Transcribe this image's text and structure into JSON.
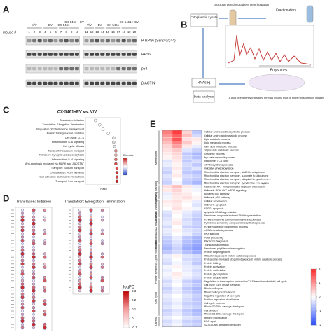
{
  "panels": {
    "a": {
      "label": "A",
      "mouse_label": "mouse #",
      "mouse_numbers": [
        "1",
        "2",
        "3",
        "4",
        "5",
        "6",
        "7",
        "8",
        "9",
        "10",
        "11",
        "12",
        "13",
        "14",
        "15",
        "16",
        "17",
        "18",
        "19",
        "20"
      ],
      "groups": [
        {
          "label": "V/V",
          "lanes": 3
        },
        {
          "label": "EV",
          "lanes": 3
        },
        {
          "label": "CX-5461",
          "lanes": 2
        },
        {
          "label": "CX-5461 + EV",
          "lanes": 2
        },
        {
          "label": "V/V",
          "lanes": 2
        },
        {
          "label": "EV",
          "lanes": 2
        },
        {
          "label": "CX-5461",
          "lanes": 3
        },
        {
          "label": "CX-5461 + EV",
          "lanes": 3
        }
      ],
      "rows": [
        "P-RPS6 (Ser240/244)",
        "RPS6",
        "p53",
        "β-ACTIN"
      ]
    },
    "b": {
      "label": "B",
      "lysate": "Cytoplasmic Lysate",
      "gradient": "Sucrose density gradient centrifugation",
      "fractionation": "Fractionation",
      "polysomes": "Polysomes",
      "rnaseq": "RNAseq",
      "analysis": "Data analysis",
      "pool": "A pool of efficiently translated mRNAs (bound by 8 or more ribosomes) is isolated"
    },
    "c": {
      "label": "C",
      "title": "CX-5461+EV vs. V/V",
      "xlabel": "Ratio",
      "legend_title": "Direction",
      "xlim": [
        0,
        0.3
      ],
      "terms": [
        {
          "label": "Translation: Initiation",
          "ratio": 0.08,
          "color": "#ffffff"
        },
        {
          "label": "Translation: Elongation-Termination",
          "ratio": 0.12,
          "color": "#ffffff"
        },
        {
          "label": "Regulation of cytoskeleton management",
          "ratio": 0.15,
          "color": "#ffffff"
        },
        {
          "label": "Protein folding-normal condition",
          "ratio": 0.2,
          "color": "#ffffff"
        },
        {
          "label": "Cell cycle: G1-S",
          "ratio": 0.25,
          "color": "#dddddd"
        },
        {
          "label": "Inflammation: IL-6 signaling",
          "ratio": 0.25,
          "color": "#dddddd"
        },
        {
          "label": "Cell cycle: Mitosis",
          "ratio": 0.26,
          "color": "#e8e8e8"
        },
        {
          "label": "Transport: Potassium transport",
          "ratio": 0.27,
          "color": "#ee8a8a"
        },
        {
          "label": "Transport: Synaptic vesicle exocytosis",
          "ratio": 0.27,
          "color": "#f4b0b0"
        },
        {
          "label": "Inflammation: IL-4 signaling",
          "ratio": 0.27,
          "color": "#e66a6a"
        },
        {
          "label": "Anti-apoptosis mediated via MAPK and JAK/STAT",
          "ratio": 0.27,
          "color": "#d94a4a"
        },
        {
          "label": "Transport: Sodium transport",
          "ratio": 0.28,
          "color": "#e05050"
        },
        {
          "label": "Cytoskeleton: Actin filaments",
          "ratio": 0.28,
          "color": "#cc3030"
        },
        {
          "label": "Cell adhesion: Cell-matrix interactions",
          "ratio": 0.28,
          "color": "#d84040"
        },
        {
          "label": "Transport: Iron transport",
          "ratio": 0.28,
          "color": "#c02020"
        }
      ]
    },
    "d": {
      "label": "D",
      "title_left": "Translation: Initiation",
      "title_right": "Translation: Elongation-Termination",
      "legend_title": "logFC",
      "legend_ticks": [
        0.3,
        0.2,
        0.1,
        0,
        -0.1
      ],
      "legend_lim": [
        -0.1,
        0.3
      ]
    },
    "e": {
      "label": "E",
      "scale_lim": [
        -2,
        2
      ],
      "scale_ticks": [
        2,
        1,
        0,
        -1,
        -2
      ],
      "groups": [
        {
          "name": "Metabolism",
          "rows": [
            {
              "label": "Cellular amino acid biosynthetic process",
              "values": [
                1.2,
                1.8,
                0.4,
                -0.6
              ]
            },
            {
              "label": "Cellular amino acid metabolic process",
              "values": [
                1.0,
                1.5,
                0.6,
                -0.4
              ]
            },
            {
              "label": "Lipid catabolic process",
              "values": [
                0.8,
                1.6,
                0.3,
                0.2
              ]
            },
            {
              "label": "Lipid metabolic process",
              "values": [
                0.6,
                1.2,
                0.5,
                0.1
              ]
            },
            {
              "label": "Fatty acid metabolic process",
              "values": [
                0.4,
                0.9,
                0.2,
                -0.2
              ]
            },
            {
              "label": "Triglyceride metabolic process",
              "values": [
                0.3,
                0.5,
                -0.3,
                -0.5
              ]
            },
            {
              "label": "Glycolytic process",
              "values": [
                0.2,
                0.4,
                -0.6,
                -0.8
              ]
            },
            {
              "label": "Pyruvate metabolic process",
              "values": [
                0.1,
                0.3,
                -0.5,
                -0.7
              ]
            },
            {
              "label": "Reactome: TCA cycle",
              "values": [
                -0.3,
                0.2,
                -0.6,
                -0.4
              ]
            },
            {
              "label": "ATP biosynthetic process",
              "values": [
                -0.2,
                0.1,
                -0.4,
                -0.6
              ]
            },
            {
              "label": "Oxidative phosphorylation",
              "values": [
                -0.4,
                0.2,
                -0.5,
                -0.3
              ]
            },
            {
              "label": "Mitochondrial electron transport, NADH to ubiquinone",
              "values": [
                -0.5,
                0.1,
                -0.6,
                -0.7
              ]
            },
            {
              "label": "Mitochondrial electron transport, succinate to ubiquinone",
              "values": [
                -0.3,
                0.2,
                -0.4,
                -0.5
              ]
            },
            {
              "label": "Mitochondrial electron transport, ubiquinol to cytochrome c",
              "values": [
                -0.4,
                0.0,
                -0.5,
                -0.6
              ]
            },
            {
              "label": "Mitochondrial electron transport, cytochrome c to oxygen",
              "values": [
                -0.5,
                -0.1,
                -0.6,
                -0.8
              ]
            }
          ]
        },
        {
          "name": "Signaling pathway",
          "rows": [
            {
              "label": "Reactome: AKT phosphorylates targets in the cytosol",
              "values": [
                0.3,
                0.6,
                0.2,
                -0.2
              ]
            },
            {
              "label": "Hallmark: PI3K-AKT-mTOR signaling",
              "values": [
                0.2,
                0.4,
                0.1,
                -0.1
              ]
            },
            {
              "label": "Biocarta: p53 pathway",
              "values": [
                -0.2,
                0.3,
                0.2,
                0.0
              ]
            },
            {
              "label": "Hallmark: p53 pathway",
              "values": [
                -0.1,
                0.2,
                0.3,
                0.1
              ]
            }
          ]
        },
        {
          "name": "Cell death / senescence",
          "rows": [
            {
              "label": "Cellular senescence",
              "values": [
                0.2,
                0.3,
                0.1,
                -0.2
              ]
            },
            {
              "label": "Hallmark: apoptosis",
              "values": [
                0.1,
                0.2,
                0.0,
                -0.3
              ]
            },
            {
              "label": "KEGG: apoptosis",
              "values": [
                0.0,
                0.3,
                0.1,
                -0.1
              ]
            },
            {
              "label": "Apoptotic DNA fragmentation",
              "values": [
                -0.3,
                0.1,
                -0.2,
                -0.4
              ]
            },
            {
              "label": "Reactome: apoptosis induced DNA fragmentation",
              "values": [
                -0.4,
                0.0,
                -0.3,
                -0.5
              ]
            }
          ]
        },
        {
          "name": "Nucleic acid/DNA metabolism",
          "rows": [
            {
              "label": "Purine-containing compound biosynthetic process",
              "values": [
                -0.3,
                0.1,
                -0.4,
                -0.6
              ]
            },
            {
              "label": "Pyrimidine-containing compound biosynthetic process",
              "values": [
                -0.2,
                0.2,
                -0.3,
                -0.5
              ]
            },
            {
              "label": "Purine nucleotide biosynthetic process",
              "values": [
                -0.4,
                0.0,
                -0.5,
                -0.6
              ]
            },
            {
              "label": "mRNA metabolic process",
              "values": [
                -0.2,
                0.1,
                -0.3,
                -0.4
              ]
            },
            {
              "label": "RNA splicing",
              "values": [
                -0.3,
                0.0,
                -0.2,
                -0.5
              ]
            },
            {
              "label": "rRNA processing",
              "values": [
                -0.5,
                -0.2,
                -0.6,
                -0.8
              ]
            },
            {
              "label": "Ribosome biogenesis",
              "values": [
                -0.6,
                -0.3,
                -0.7,
                -0.9
              ]
            }
          ]
        },
        {
          "name": "Protein synthesis / post modification",
          "rows": [
            {
              "label": "Translational initiation",
              "values": [
                -0.7,
                -0.4,
                -0.8,
                -1.0
              ]
            },
            {
              "label": "Reactome: peptide chain elongation",
              "values": [
                -0.8,
                -0.5,
                -0.9,
                -1.1
              ]
            },
            {
              "label": "Protein targeting to ER",
              "values": [
                -0.6,
                -0.4,
                -0.7,
                -0.9
              ]
            },
            {
              "label": "Ubiquitin dependent protein catabolic process",
              "values": [
                -0.2,
                0.1,
                -0.3,
                -0.4
              ]
            },
            {
              "label": "Proteasome-mediated ubiquitin-dependent protein catabolic process",
              "values": [
                -0.3,
                0.0,
                -0.4,
                -0.5
              ]
            },
            {
              "label": "Protein folding",
              "values": [
                -0.4,
                -0.1,
                -0.3,
                -0.6
              ]
            },
            {
              "label": "Protein acetylation",
              "values": [
                -0.1,
                0.1,
                -0.2,
                -0.3
              ]
            },
            {
              "label": "Protein methylation",
              "values": [
                -0.2,
                0.0,
                -0.2,
                -0.4
              ]
            },
            {
              "label": "Protein glycosylation",
              "values": [
                -0.1,
                0.2,
                -0.1,
                -0.3
              ]
            },
            {
              "label": "Protein ubiquitination",
              "values": [
                -0.2,
                0.1,
                -0.2,
                -0.4
              ]
            }
          ]
        },
        {
          "name": "Cell cycle",
          "rows": [
            {
              "label": "Regulation of transcription involved in G1-S transition of mitotic cell cycle",
              "values": [
                -0.4,
                -0.1,
                -0.5,
                -0.7
              ]
            },
            {
              "label": "Cell cycle G1/S phase transition",
              "values": [
                -0.3,
                0.0,
                -0.4,
                -0.6
              ]
            },
            {
              "label": "Mitotic cell cycle",
              "values": [
                -0.5,
                -0.2,
                -0.6,
                -0.8
              ]
            },
            {
              "label": "Mitotic cell cycle checkpoint",
              "values": [
                -0.4,
                -0.2,
                -0.5,
                -0.7
              ]
            },
            {
              "label": "Negative regulation of cell cycle",
              "values": [
                -0.2,
                0.0,
                -0.3,
                -0.5
              ]
            },
            {
              "label": "Positive regulation of cell cycle",
              "values": [
                -0.3,
                -0.1,
                -0.4,
                -0.6
              ]
            },
            {
              "label": "Cell cycle process",
              "values": [
                -0.4,
                -0.2,
                -0.5,
                -0.6
              ]
            },
            {
              "label": "Mitotic G2 DNA damage checkpoint",
              "values": [
                -0.3,
                -0.1,
                -0.4,
                -0.5
              ]
            },
            {
              "label": "Cell division",
              "values": [
                -0.5,
                -0.3,
                -0.6,
                -0.8
              ]
            },
            {
              "label": "Mitotic G1 DNA damage checkpoint",
              "values": [
                -0.4,
                -0.2,
                -0.5,
                -0.7
              ]
            }
          ]
        },
        {
          "name": "Others",
          "rows": [
            {
              "label": "Histone modification",
              "values": [
                -0.2,
                0.0,
                -0.3,
                -0.4
              ]
            },
            {
              "label": "DNA repair",
              "values": [
                -0.4,
                -0.2,
                -0.5,
                -0.6
              ]
            },
            {
              "label": "G2-G1 DNA damage checkpoint",
              "values": [
                -0.3,
                -0.1,
                -0.4,
                -0.5
              ]
            }
          ]
        }
      ]
    }
  }
}
